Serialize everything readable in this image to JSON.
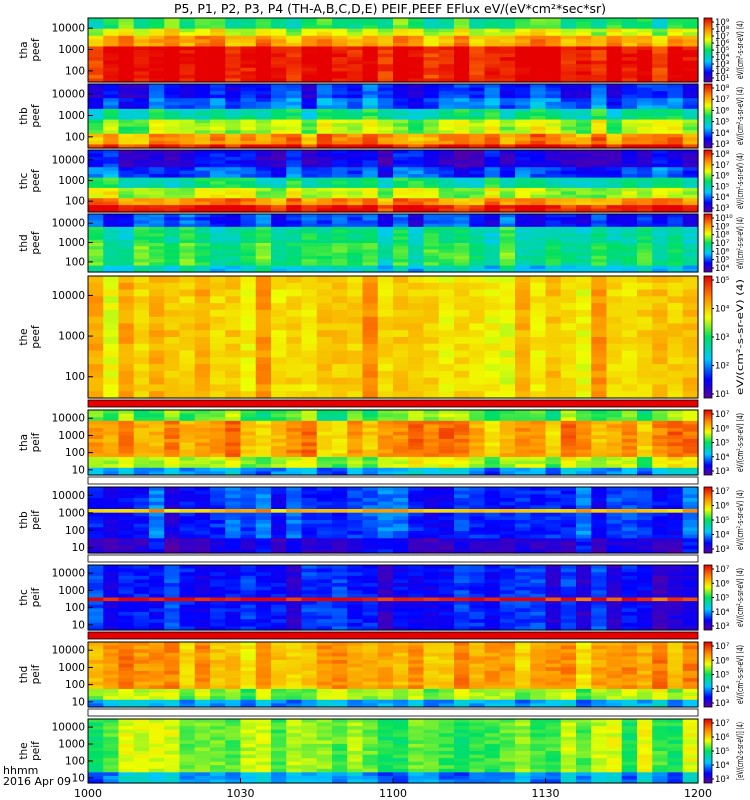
{
  "title": "P5, P1, P2, P3, P4 (TH-A,B,C,D,E) PEIF,PEEF EFlux eV/(eV*cm²*sec*sr)",
  "footer": {
    "time_unit": "hhmm",
    "date": "2016 Apr 09"
  },
  "colors": {
    "background": "#ffffff",
    "frame": "#000000"
  },
  "chart_data": {
    "type": "heatmap",
    "x_ticks": [
      "1000",
      "1030",
      "1100",
      "1130",
      "1200"
    ],
    "xlim": [
      "10:00",
      "12:00"
    ],
    "y_scale": "log",
    "colormap": "rainbow (purple-blue-cyan-green-yellow-orange-red)",
    "panels": [
      {
        "id": "tha-peef",
        "ylabel": [
          "tha",
          "peef"
        ],
        "yticks": [
          "10000",
          "1000",
          "100"
        ],
        "ylim": [
          30,
          30000
        ],
        "cbar_ticks": [
          "10⁹",
          "10⁸",
          "10⁷",
          "10⁶",
          "10⁵",
          "10⁴",
          "10³",
          "10²",
          "10¹"
        ],
        "cbar_label": "eV/(cm²-s-sr-eV) (4)"
      },
      {
        "id": "thb-peef",
        "ylabel": [
          "thb",
          "peef"
        ],
        "yticks": [
          "10000",
          "1000",
          "100"
        ],
        "ylim": [
          30,
          30000
        ],
        "cbar_ticks": [
          "10⁸",
          "10⁷",
          "10⁶",
          "10⁵",
          "10⁴",
          "10³"
        ],
        "cbar_label": "eV/(cm²-s-sr-eV) (4)"
      },
      {
        "id": "thc-peef",
        "ylabel": [
          "thc",
          "peef"
        ],
        "yticks": [
          "10000",
          "1000",
          "100"
        ],
        "ylim": [
          30,
          30000
        ],
        "cbar_ticks": [
          "10⁸",
          "10⁷",
          "10⁶",
          "10⁵",
          "10⁴",
          "10³"
        ],
        "cbar_label": "eV/(cm²-s-sr-eV) (4)"
      },
      {
        "id": "thd-peef",
        "ylabel": [
          "thd",
          "peef"
        ],
        "yticks": [
          "10000",
          "1000",
          "100"
        ],
        "ylim": [
          30,
          30000
        ],
        "cbar_ticks": [
          "10¹⁰",
          "10⁹",
          "10⁸",
          "10⁷",
          "10⁶",
          "10⁵",
          "10⁴"
        ],
        "cbar_label": "eV/(cm²-s-sr-eV) (4)"
      },
      {
        "id": "the-peef",
        "ylabel": [
          "the",
          "peef"
        ],
        "yticks": [
          "10000",
          "1000",
          "100"
        ],
        "ylim": [
          30,
          30000
        ],
        "cbar_ticks": [
          "10⁵",
          "10⁴",
          "10³",
          "10²",
          "10¹"
        ],
        "cbar_label": "eV/(cm²-s-sr-eV) (4)"
      },
      {
        "id": "tha-peif",
        "ylabel": [
          "tha",
          "peif"
        ],
        "yticks": [
          "10000",
          "1000",
          "100",
          "10"
        ],
        "ylim": [
          5,
          30000
        ],
        "cbar_ticks": [
          "10⁷",
          "10⁶",
          "10⁵",
          "10⁴",
          "10³"
        ],
        "cbar_label": "eV/(cm²-s-sr-eV) (4)"
      },
      {
        "id": "thb-peif",
        "ylabel": [
          "thb",
          "peif"
        ],
        "yticks": [
          "10000",
          "1000",
          "100",
          "10"
        ],
        "ylim": [
          5,
          30000
        ],
        "cbar_ticks": [
          "10⁷",
          "10⁶",
          "10⁵",
          "10⁴",
          "10³"
        ],
        "cbar_label": "eV/(cm²-s-sr-eV) (4)"
      },
      {
        "id": "thc-peif",
        "ylabel": [
          "thc",
          "peif"
        ],
        "yticks": [
          "10000",
          "1000",
          "100",
          "10"
        ],
        "ylim": [
          5,
          30000
        ],
        "cbar_ticks": [
          "10⁷",
          "10⁶",
          "10⁵",
          "10⁴",
          "10³"
        ],
        "cbar_label": "eV/(cm²-s-sr-eV) (4)"
      },
      {
        "id": "thd-peif",
        "ylabel": [
          "thd",
          "peif"
        ],
        "yticks": [
          "10000",
          "1000",
          "100",
          "10"
        ],
        "ylim": [
          5,
          30000
        ],
        "cbar_ticks": [
          "10⁷",
          "10⁶",
          "10⁵",
          "10⁴",
          "10³"
        ],
        "cbar_label": "eV/(cm²-s-sr-eV) (4)"
      },
      {
        "id": "the-peif",
        "ylabel": [
          "the",
          "peif"
        ],
        "yticks": [
          "10000",
          "1000",
          "100",
          "10"
        ],
        "ylim": [
          5,
          30000
        ],
        "cbar_ticks": [
          "10⁷",
          "10⁶",
          "10⁵",
          "10⁴",
          "10³"
        ],
        "cbar_label": "[eV/(cm2-s-sr-eV)] (4)"
      }
    ]
  }
}
